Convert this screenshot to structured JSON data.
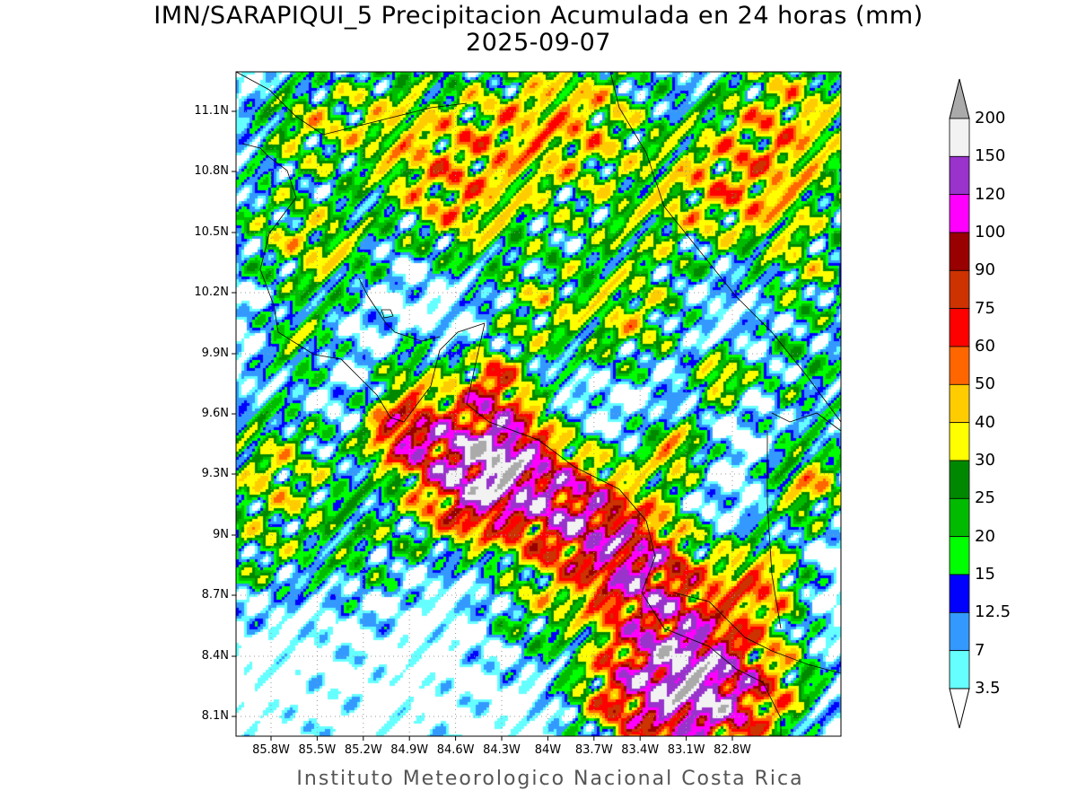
{
  "title": {
    "line1": "IMN/SARAPIQUI_5 Precipitacion Acumulada en 24 horas (mm)",
    "line2": "2025-09-07"
  },
  "footer": "Instituto Meteorologico Nacional Costa Rica",
  "axes": {
    "lat_labels": [
      "11.1N",
      "10.8N",
      "10.5N",
      "10.2N",
      "9.9N",
      "9.6N",
      "9.3N",
      "9N",
      "8.7N",
      "8.4N",
      "8.1N"
    ],
    "lon_labels": [
      "85.8W",
      "85.5W",
      "85.2W",
      "84.9W",
      "84.6W",
      "84.3W",
      "84W",
      "83.7W",
      "83.4W",
      "83.1W",
      "82.8W"
    ]
  },
  "colorbar": {
    "levels": [
      "200",
      "150",
      "120",
      "100",
      "90",
      "75",
      "60",
      "50",
      "40",
      "30",
      "25",
      "20",
      "15",
      "12.5",
      "7",
      "3.5"
    ],
    "colors_top_to_bottom": [
      "#f2f2f2",
      "#9933cc",
      "#ff00ff",
      "#990000",
      "#cc3300",
      "#ff0000",
      "#ff6600",
      "#ffcc00",
      "#ffff00",
      "#008800",
      "#00bb00",
      "#00ff00",
      "#0000ff",
      "#3399ff",
      "#66ffff"
    ],
    "over_color": "#aaaaaa",
    "under_color": "#ffffff"
  }
}
